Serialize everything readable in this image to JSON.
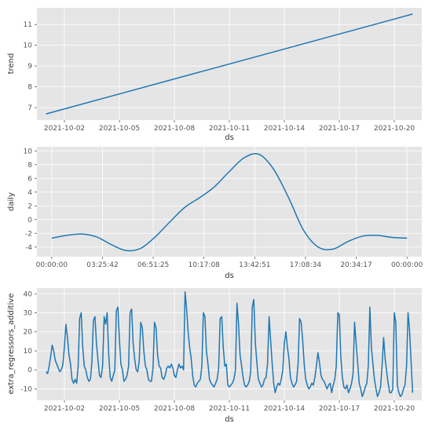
{
  "colors": {
    "panel_bg": "#E5E5E5",
    "grid": "#FFFFFF",
    "line": "#1F77B4",
    "text": "#555555"
  },
  "chart_data": [
    {
      "type": "line",
      "xlabel": "ds",
      "ylabel": "trend",
      "x_ticks": [
        "2021-10-02",
        "2021-10-05",
        "2021-10-08",
        "2021-10-11",
        "2021-10-14",
        "2021-10-17",
        "2021-10-20"
      ],
      "y_ticks": [
        7,
        8,
        9,
        10,
        11
      ],
      "xlim": [
        "2021-09-30T12:00",
        "2021-10-21T12:00"
      ],
      "ylim": [
        6.4,
        11.8
      ],
      "grid": true,
      "series": [
        {
          "x": [
            "2021-10-01T00:00",
            "2021-10-21T00:00"
          ],
          "y": [
            6.7,
            11.5
          ]
        }
      ]
    },
    {
      "type": "line",
      "xlabel": "ds",
      "ylabel": "daily",
      "x_ticks": [
        "00:00:00",
        "03:25:42",
        "06:51:25",
        "10:17:08",
        "13:42:51",
        "17:08:34",
        "20:34:17",
        "00:00:00"
      ],
      "y_ticks": [
        -4,
        -2,
        0,
        2,
        4,
        6,
        8,
        10
      ],
      "xlim": [
        -1,
        25
      ],
      "ylim": [
        -5.4,
        10.6
      ],
      "grid": true,
      "series": [
        {
          "x": [
            0,
            1,
            2,
            3,
            4,
            5,
            6,
            7,
            8,
            9,
            10,
            11,
            12,
            13,
            14,
            15,
            16,
            17,
            18,
            19,
            20,
            21,
            22,
            23,
            24
          ],
          "y": [
            -2.7,
            -2.3,
            -2.1,
            -2.5,
            -3.6,
            -4.5,
            -4.2,
            -2.5,
            -0.3,
            1.8,
            3.2,
            4.8,
            7.0,
            9.0,
            9.5,
            7.3,
            3.2,
            -1.5,
            -4.0,
            -4.3,
            -3.2,
            -2.4,
            -2.3,
            -2.6,
            -2.7
          ]
        }
      ]
    },
    {
      "type": "line",
      "xlabel": "ds",
      "ylabel": "extra_regressors_additive",
      "x_ticks": [
        "2021-10-02",
        "2021-10-05",
        "2021-10-08",
        "2021-10-11",
        "2021-10-14",
        "2021-10-17",
        "2021-10-20"
      ],
      "y_ticks": [
        -10,
        0,
        10,
        20,
        30,
        40
      ],
      "xlim": [
        "2021-09-30T12:00",
        "2021-10-21T12:00"
      ],
      "ylim": [
        -16,
        43
      ],
      "grid": true,
      "series": [
        {
          "x": [
            "2021-10-01T00:00",
            "2021-10-01T02:00",
            "2021-10-01T04:00",
            "2021-10-01T06:00",
            "2021-10-01T08:00",
            "2021-10-01T10:00",
            "2021-10-01T12:00",
            "2021-10-01T14:00",
            "2021-10-01T16:00",
            "2021-10-01T18:00",
            "2021-10-01T20:00",
            "2021-10-01T22:00",
            "2021-10-02T00:00",
            "2021-10-02T02:00",
            "2021-10-02T04:00",
            "2021-10-02T06:00",
            "2021-10-02T08:00",
            "2021-10-02T10:00",
            "2021-10-02T12:00",
            "2021-10-02T14:00",
            "2021-10-02T16:00",
            "2021-10-02T18:00",
            "2021-10-02T20:00",
            "2021-10-02T22:00",
            "2021-10-03T00:00",
            "2021-10-03T02:00",
            "2021-10-03T04:00",
            "2021-10-03T06:00",
            "2021-10-03T08:00",
            "2021-10-03T10:00",
            "2021-10-03T12:00",
            "2021-10-03T14:00",
            "2021-10-03T16:00",
            "2021-10-03T18:00",
            "2021-10-03T20:00",
            "2021-10-03T22:00",
            "2021-10-04T00:00",
            "2021-10-04T02:00",
            "2021-10-04T04:00",
            "2021-10-04T06:00",
            "2021-10-04T08:00",
            "2021-10-04T10:00",
            "2021-10-04T12:00",
            "2021-10-04T14:00",
            "2021-10-04T16:00",
            "2021-10-04T18:00",
            "2021-10-04T20:00",
            "2021-10-04T22:00",
            "2021-10-05T00:00",
            "2021-10-05T02:00",
            "2021-10-05T04:00",
            "2021-10-05T06:00",
            "2021-10-05T08:00",
            "2021-10-05T10:00",
            "2021-10-05T12:00",
            "2021-10-05T14:00",
            "2021-10-05T16:00",
            "2021-10-05T18:00",
            "2021-10-05T20:00",
            "2021-10-05T22:00",
            "2021-10-06T00:00",
            "2021-10-06T02:00",
            "2021-10-06T04:00",
            "2021-10-06T06:00",
            "2021-10-06T08:00",
            "2021-10-06T10:00",
            "2021-10-06T12:00",
            "2021-10-06T14:00",
            "2021-10-06T16:00",
            "2021-10-06T18:00",
            "2021-10-06T20:00",
            "2021-10-06T22:00",
            "2021-10-07T00:00",
            "2021-10-07T02:00",
            "2021-10-07T04:00",
            "2021-10-07T06:00",
            "2021-10-07T08:00",
            "2021-10-07T10:00",
            "2021-10-07T12:00",
            "2021-10-07T14:00",
            "2021-10-07T16:00",
            "2021-10-07T18:00",
            "2021-10-07T20:00",
            "2021-10-07T22:00",
            "2021-10-08T00:00",
            "2021-10-08T02:00",
            "2021-10-08T04:00",
            "2021-10-08T06:00",
            "2021-10-08T08:00",
            "2021-10-08T10:00",
            "2021-10-08T12:00",
            "2021-10-08T14:00",
            "2021-10-08T16:00",
            "2021-10-08T18:00",
            "2021-10-08T20:00",
            "2021-10-08T22:00",
            "2021-10-09T00:00",
            "2021-10-09T02:00",
            "2021-10-09T04:00",
            "2021-10-09T06:00",
            "2021-10-09T08:00",
            "2021-10-09T10:00",
            "2021-10-09T12:00",
            "2021-10-09T14:00",
            "2021-10-09T16:00",
            "2021-10-09T18:00",
            "2021-10-09T20:00",
            "2021-10-09T22:00",
            "2021-10-10T00:00",
            "2021-10-10T02:00",
            "2021-10-10T04:00",
            "2021-10-10T06:00",
            "2021-10-10T08:00",
            "2021-10-10T10:00",
            "2021-10-10T12:00",
            "2021-10-10T14:00",
            "2021-10-10T16:00",
            "2021-10-10T18:00",
            "2021-10-10T20:00",
            "2021-10-10T22:00",
            "2021-10-11T00:00",
            "2021-10-11T02:00",
            "2021-10-11T04:00",
            "2021-10-11T06:00",
            "2021-10-11T08:00",
            "2021-10-11T10:00",
            "2021-10-11T12:00",
            "2021-10-11T14:00",
            "2021-10-11T16:00",
            "2021-10-11T18:00",
            "2021-10-11T20:00",
            "2021-10-11T22:00",
            "2021-10-12T00:00",
            "2021-10-12T02:00",
            "2021-10-12T04:00",
            "2021-10-12T06:00",
            "2021-10-12T08:00",
            "2021-10-12T10:00",
            "2021-10-12T12:00",
            "2021-10-12T14:00",
            "2021-10-12T16:00",
            "2021-10-12T18:00",
            "2021-10-12T20:00",
            "2021-10-12T22:00",
            "2021-10-13T00:00",
            "2021-10-13T02:00",
            "2021-10-13T04:00",
            "2021-10-13T06:00",
            "2021-10-13T08:00",
            "2021-10-13T10:00",
            "2021-10-13T12:00",
            "2021-10-13T14:00",
            "2021-10-13T16:00",
            "2021-10-13T18:00",
            "2021-10-13T20:00",
            "2021-10-13T22:00",
            "2021-10-14T00:00",
            "2021-10-14T02:00",
            "2021-10-14T04:00",
            "2021-10-14T06:00",
            "2021-10-14T08:00",
            "2021-10-14T10:00",
            "2021-10-14T12:00",
            "2021-10-14T14:00",
            "2021-10-14T16:00",
            "2021-10-14T18:00",
            "2021-10-14T20:00",
            "2021-10-14T22:00",
            "2021-10-15T00:00",
            "2021-10-15T02:00",
            "2021-10-15T04:00",
            "2021-10-15T06:00",
            "2021-10-15T08:00",
            "2021-10-15T10:00",
            "2021-10-15T12:00",
            "2021-10-15T14:00",
            "2021-10-15T16:00",
            "2021-10-15T18:00",
            "2021-10-15T20:00",
            "2021-10-15T22:00",
            "2021-10-16T00:00",
            "2021-10-16T02:00",
            "2021-10-16T04:00",
            "2021-10-16T06:00",
            "2021-10-16T08:00",
            "2021-10-16T10:00",
            "2021-10-16T12:00",
            "2021-10-16T14:00",
            "2021-10-16T16:00",
            "2021-10-16T18:00",
            "2021-10-16T20:00",
            "2021-10-16T22:00",
            "2021-10-17T00:00",
            "2021-10-17T02:00",
            "2021-10-17T04:00",
            "2021-10-17T06:00",
            "2021-10-17T08:00",
            "2021-10-17T10:00",
            "2021-10-17T12:00",
            "2021-10-17T14:00",
            "2021-10-17T16:00",
            "2021-10-17T18:00",
            "2021-10-17T20:00",
            "2021-10-17T22:00",
            "2021-10-18T00:00",
            "2021-10-18T02:00",
            "2021-10-18T04:00",
            "2021-10-18T06:00",
            "2021-10-18T08:00",
            "2021-10-18T10:00",
            "2021-10-18T12:00",
            "2021-10-18T14:00",
            "2021-10-18T16:00",
            "2021-10-18T18:00",
            "2021-10-18T20:00",
            "2021-10-18T22:00",
            "2021-10-19T00:00",
            "2021-10-19T02:00",
            "2021-10-19T04:00",
            "2021-10-19T06:00",
            "2021-10-19T08:00",
            "2021-10-19T10:00",
            "2021-10-19T12:00",
            "2021-10-19T14:00",
            "2021-10-19T16:00",
            "2021-10-19T18:00",
            "2021-10-19T20:00",
            "2021-10-19T22:00",
            "2021-10-20T00:00",
            "2021-10-20T02:00",
            "2021-10-20T04:00",
            "2021-10-20T06:00",
            "2021-10-20T08:00",
            "2021-10-20T10:00",
            "2021-10-20T12:00",
            "2021-10-20T14:00",
            "2021-10-20T16:00",
            "2021-10-20T18:00",
            "2021-10-20T20:00",
            "2021-10-20T22:00",
            "2021-10-21T00:00"
          ],
          "y": [
            -1,
            -2,
            2,
            7,
            13,
            10,
            5,
            3,
            1,
            -1,
            0,
            3,
            12,
            24,
            17,
            8,
            3,
            -5,
            -7,
            -5,
            -7,
            2,
            27,
            30,
            12,
            2,
            0,
            -4,
            -6,
            -5,
            4,
            26,
            28,
            14,
            5,
            -3,
            -4,
            2,
            28,
            24,
            30,
            8,
            -4,
            -6,
            -3,
            0,
            31,
            33,
            16,
            3,
            0,
            -6,
            -5,
            -3,
            2,
            30,
            32,
            14,
            6,
            0,
            -1,
            5,
            25,
            22,
            10,
            2,
            0,
            -5,
            -6,
            -6,
            1,
            25,
            22,
            8,
            2,
            1,
            -4,
            -5,
            -3,
            1,
            2,
            1,
            3,
            1,
            -3,
            -4,
            0,
            3,
            1,
            2,
            0,
            41,
            32,
            20,
            12,
            6,
            -3,
            -8,
            -9,
            -7,
            -6,
            -5,
            2,
            30,
            28,
            10,
            3,
            -5,
            -7,
            -8,
            -9,
            -7,
            -5,
            1,
            27,
            28,
            12,
            2,
            3,
            -8,
            -9,
            -8,
            -7,
            -5,
            0,
            35,
            24,
            8,
            2,
            -4,
            -8,
            -9,
            -8,
            -6,
            -1,
            33,
            37,
            14,
            4,
            -5,
            -7,
            -9,
            -8,
            -5,
            -4,
            3,
            28,
            16,
            4,
            -7,
            -12,
            -9,
            -7,
            -8,
            -5,
            0,
            14,
            20,
            12,
            6,
            -4,
            -7,
            -9,
            -8,
            -6,
            3,
            27,
            25,
            16,
            3,
            -5,
            -8,
            -10,
            -9,
            -7,
            -8,
            -4,
            2,
            9,
            4,
            -3,
            -5,
            -6,
            -8,
            -10,
            -8,
            -7,
            -12,
            -8,
            -5,
            2,
            30,
            29,
            7,
            -4,
            -9,
            -10,
            -8,
            -12,
            -10,
            -7,
            -2,
            25,
            14,
            4,
            -7,
            -10,
            -14,
            -12,
            -9,
            -7,
            2,
            33,
            12,
            3,
            -5,
            -10,
            -14,
            -12,
            -9,
            2,
            17,
            6,
            -1,
            -7,
            -12,
            -12,
            -10,
            30,
            25,
            -8,
            -12,
            -14,
            -13,
            -10,
            -8,
            2,
            30,
            21,
            4,
            -12
          ]
        }
      ]
    }
  ]
}
